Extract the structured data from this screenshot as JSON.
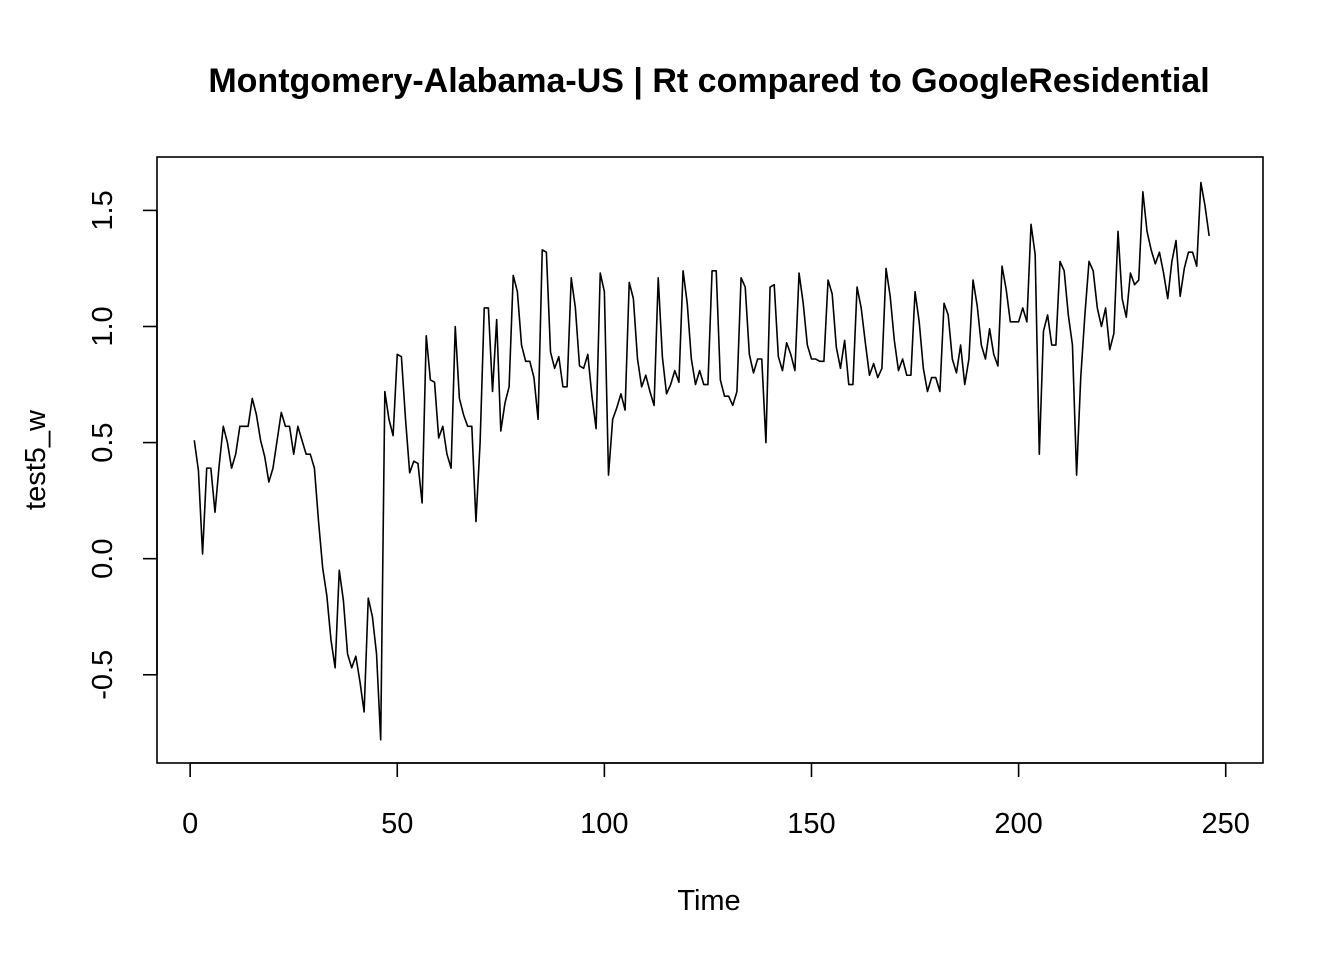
{
  "chart_data": {
    "type": "line",
    "title": "Montgomery-Alabama-US | Rt compared to GoogleResidential",
    "xlabel": "Time",
    "ylabel": "test5_w",
    "xlim": [
      -8,
      259
    ],
    "ylim": [
      -0.88,
      1.73
    ],
    "xticks": [
      0,
      50,
      100,
      150,
      200,
      250
    ],
    "xtick_labels": [
      "0",
      "50",
      "100",
      "150",
      "200",
      "250"
    ],
    "yticks": [
      -0.5,
      0.0,
      0.5,
      1.0,
      1.5
    ],
    "ytick_labels": [
      "-0.5",
      "0.0",
      "0.5",
      "1.0",
      "1.5"
    ],
    "grid": false,
    "series": [
      {
        "color": "#000000",
        "x_start": 1,
        "values": [
          0.51,
          0.38,
          0.02,
          0.39,
          0.39,
          0.2,
          0.4,
          0.57,
          0.5,
          0.39,
          0.45,
          0.57,
          0.57,
          0.57,
          0.69,
          0.62,
          0.51,
          0.44,
          0.33,
          0.39,
          0.51,
          0.63,
          0.57,
          0.57,
          0.45,
          0.57,
          0.51,
          0.45,
          0.45,
          0.39,
          0.16,
          -0.04,
          -0.16,
          -0.35,
          -0.47,
          -0.05,
          -0.18,
          -0.41,
          -0.47,
          -0.42,
          -0.53,
          -0.66,
          -0.17,
          -0.25,
          -0.41,
          -0.78,
          0.72,
          0.6,
          0.53,
          0.88,
          0.87,
          0.6,
          0.37,
          0.42,
          0.41,
          0.24,
          0.96,
          0.77,
          0.76,
          0.52,
          0.57,
          0.45,
          0.39,
          1.0,
          0.69,
          0.62,
          0.57,
          0.57,
          0.16,
          0.5,
          1.08,
          1.08,
          0.72,
          1.03,
          0.55,
          0.67,
          0.74,
          1.22,
          1.15,
          0.92,
          0.85,
          0.85,
          0.78,
          0.6,
          1.33,
          1.32,
          0.89,
          0.82,
          0.87,
          0.74,
          0.74,
          1.21,
          1.08,
          0.83,
          0.82,
          0.88,
          0.7,
          0.56,
          1.23,
          1.15,
          0.36,
          0.6,
          0.65,
          0.71,
          0.64,
          1.19,
          1.12,
          0.86,
          0.74,
          0.79,
          0.72,
          0.66,
          1.21,
          0.87,
          0.71,
          0.75,
          0.81,
          0.76,
          1.24,
          1.1,
          0.86,
          0.75,
          0.81,
          0.75,
          0.75,
          1.24,
          1.24,
          0.77,
          0.7,
          0.7,
          0.66,
          0.72,
          1.21,
          1.17,
          0.88,
          0.8,
          0.86,
          0.86,
          0.5,
          1.17,
          1.18,
          0.87,
          0.81,
          0.93,
          0.88,
          0.81,
          1.23,
          1.1,
          0.92,
          0.86,
          0.86,
          0.85,
          0.85,
          1.2,
          1.14,
          0.91,
          0.82,
          0.94,
          0.75,
          0.75,
          1.17,
          1.08,
          0.93,
          0.79,
          0.84,
          0.78,
          0.82,
          1.25,
          1.13,
          0.94,
          0.81,
          0.86,
          0.79,
          0.79,
          1.15,
          1.02,
          0.82,
          0.72,
          0.78,
          0.78,
          0.72,
          1.1,
          1.05,
          0.86,
          0.8,
          0.92,
          0.75,
          0.86,
          1.2,
          1.09,
          0.92,
          0.86,
          0.99,
          0.88,
          0.83,
          1.26,
          1.16,
          1.02,
          1.02,
          1.02,
          1.08,
          1.02,
          1.44,
          1.31,
          0.45,
          0.98,
          1.05,
          0.92,
          0.92,
          1.28,
          1.24,
          1.05,
          0.92,
          0.36,
          0.78,
          1.05,
          1.28,
          1.24,
          1.08,
          1.0,
          1.08,
          0.9,
          0.97,
          1.41,
          1.12,
          1.04,
          1.23,
          1.18,
          1.2,
          1.58,
          1.41,
          1.33,
          1.27,
          1.32,
          1.23,
          1.12,
          1.28,
          1.37,
          1.13,
          1.25,
          1.32,
          1.32,
          1.26,
          1.62,
          1.52,
          1.39
        ]
      }
    ]
  }
}
